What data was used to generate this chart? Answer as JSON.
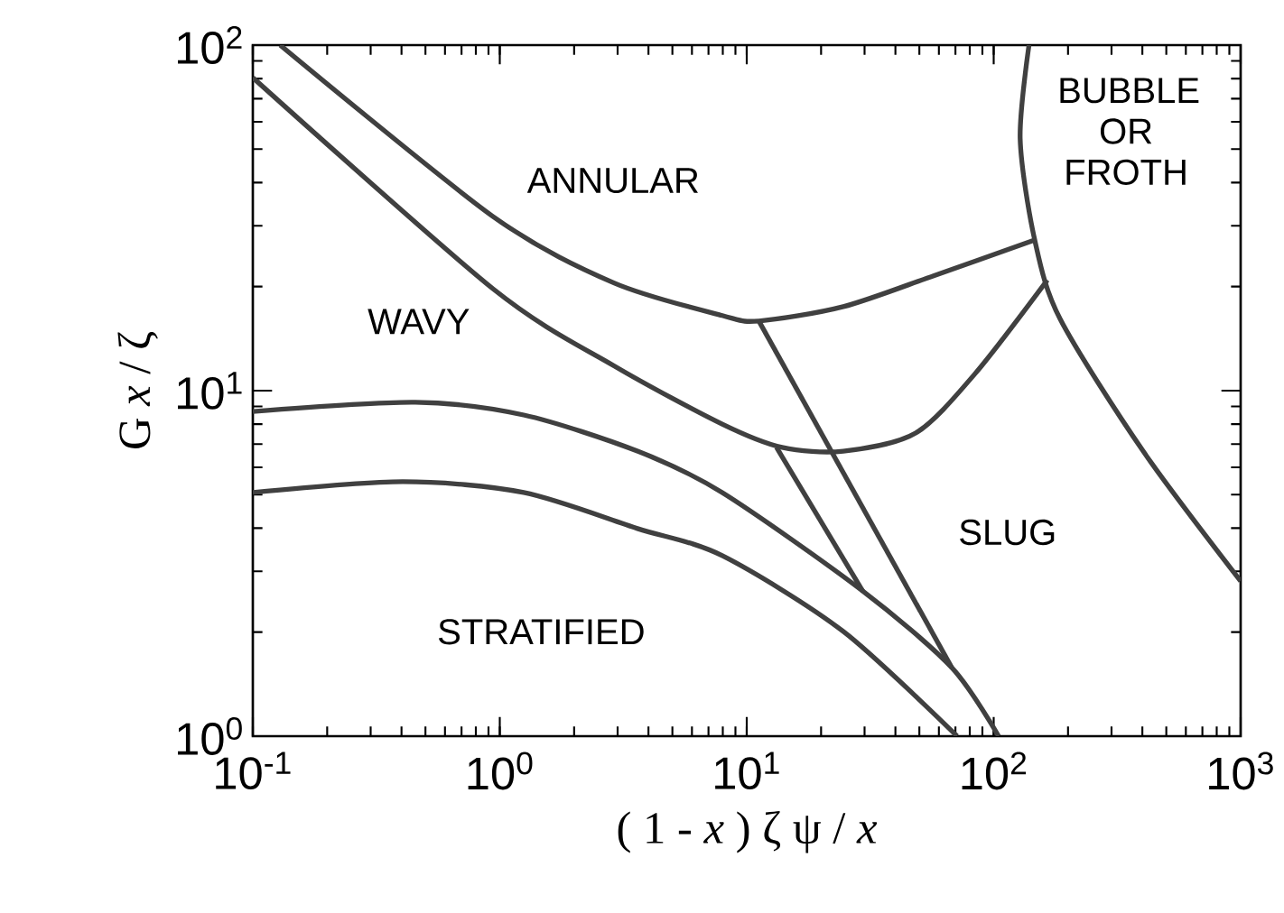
{
  "chart_data": {
    "type": "line",
    "xlabel": "( 1 - *x* ) ζ ψ / *x*",
    "ylabel": "G *x* / ζ",
    "log": "xy",
    "grid": false,
    "marker": "none",
    "line_style": "solid",
    "xlim": [
      0.1,
      1000
    ],
    "ylim": [
      1,
      100
    ],
    "xticks": [
      {
        "value": 0.1,
        "label": "10$^{-1}$"
      },
      {
        "value": 1,
        "label": "10$^{0}$"
      },
      {
        "value": 10,
        "label": "10$^{1}$"
      },
      {
        "value": 100,
        "label": "10$^{2}$"
      },
      {
        "value": 1000,
        "label": "10$^{3}$"
      }
    ],
    "yticks": [
      {
        "value": 1,
        "label": "10$^{0}$"
      },
      {
        "value": 10,
        "label": "10$^{1}$"
      },
      {
        "value": 100,
        "label": "10$^{2}$"
      }
    ],
    "series": [
      {
        "color": "#404040",
        "x": [
          0.129,
          0.94,
          2.9,
          7.96,
          11.2,
          24.6,
          57.1,
          146.6
        ],
        "values": [
          100,
          31.9,
          20.5,
          16.5,
          15.9,
          17.5,
          21.5,
          27.3
        ]
      },
      {
        "color": "#404040",
        "x": [
          0.1,
          0.94,
          2.9,
          7.96,
          13.9,
          24.6,
          48.3,
          84.1,
          165
        ],
        "values": [
          80.5,
          19.7,
          11.8,
          8.0,
          6.85,
          6.68,
          7.54,
          11.2,
          20.9
        ]
      },
      {
        "color": "#404040",
        "x": [
          0.1,
          0.455,
          1.25,
          3.61,
          7.96,
          29.1,
          67.6,
          104.7
        ],
        "values": [
          8.7,
          9.25,
          8.5,
          6.68,
          5.07,
          2.65,
          1.58,
          1
        ]
      },
      {
        "color": "#404040",
        "x": [
          0.1,
          0.405,
          1.25,
          3.61,
          7.96,
          24.6,
          71.1
        ],
        "values": [
          5.07,
          5.45,
          5.07,
          3.99,
          3.33,
          2.01,
          1
        ]
      },
      {
        "color": "#404040",
        "x": [
          11.2,
          67.6
        ],
        "values": [
          15.9,
          1.58
        ]
      },
      {
        "color": "#404040",
        "x": [
          13.2,
          29.6
        ],
        "values": [
          6.85,
          2.62
        ]
      },
      {
        "color": "#404040",
        "x": [
          139,
          128,
          146.6,
          186,
          403,
          1000
        ],
        "values": [
          100,
          53.5,
          27.3,
          16.1,
          6.68,
          2.81
        ]
      }
    ],
    "annotations": [
      "ANNULAR",
      "WAVY",
      "STRATIFIED",
      "SLUG",
      "BUBBLE OR FROTH"
    ]
  }
}
